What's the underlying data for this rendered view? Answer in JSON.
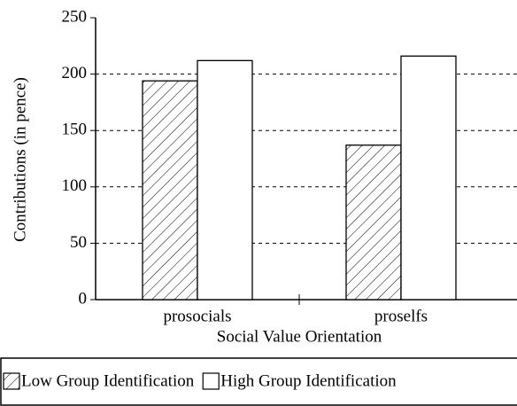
{
  "chart_data": {
    "type": "bar",
    "x_label": "Social Value Orientation",
    "y_label": "Contributions (in pence)",
    "categories": [
      "prosocials",
      "proselfs"
    ],
    "series": [
      {
        "name": "Low Group Identification",
        "color": "#ffffff",
        "pattern": "hatch",
        "values": [
          194,
          137
        ]
      },
      {
        "name": "High Group Identification",
        "color": "#ffffff",
        "values": [
          212,
          216
        ]
      }
    ],
    "ylim": [
      0,
      250
    ],
    "yticks": [
      0,
      50,
      100,
      150,
      200,
      250
    ],
    "grid": true
  }
}
